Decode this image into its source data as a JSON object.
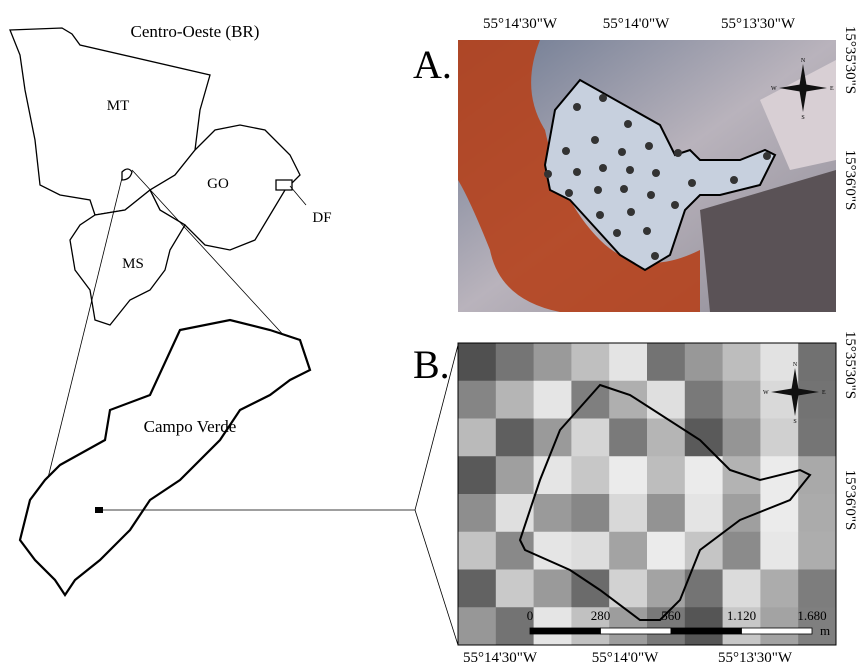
{
  "left_map": {
    "title": "Centro-Oeste (BR)",
    "regions": [
      "MT",
      "GO",
      "DF",
      "MS"
    ],
    "municipality": "Campo Verde"
  },
  "panel_a": {
    "label": "A.",
    "top_labels": [
      "55°14'30\"W",
      "55°14'0\"W",
      "55°13'30\"W"
    ],
    "right_labels": [
      "15°35'30\"S",
      "15°36'0\"S"
    ],
    "compass": [
      "N",
      "E",
      "S",
      "W"
    ]
  },
  "panel_b": {
    "label": "B.",
    "right_labels": [
      "15°35'30\"S",
      "15°36'0\"S"
    ],
    "bottom_labels": [
      "55°14'30\"W",
      "55°14'0\"W",
      "55°13'30\"W"
    ],
    "compass": [
      "N",
      "E",
      "S",
      "W"
    ],
    "scale_bar": {
      "ticks": [
        "0",
        "280",
        "560",
        "1.120",
        "1.680"
      ],
      "unit": "m"
    }
  }
}
